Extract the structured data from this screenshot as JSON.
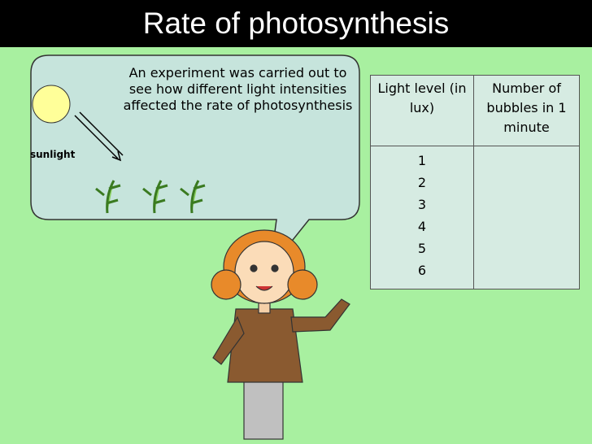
{
  "title": "Rate of photosynthesis",
  "bubble": {
    "text": "An experiment was carried out to see how different light intensities affected the rate of photosynthesis"
  },
  "sun_label": "sunlight",
  "table": {
    "headers": [
      "Light level (in lux)",
      "Number of bubbles in 1 minute"
    ],
    "light_levels": [
      1,
      2,
      3,
      4,
      5,
      6
    ]
  }
}
